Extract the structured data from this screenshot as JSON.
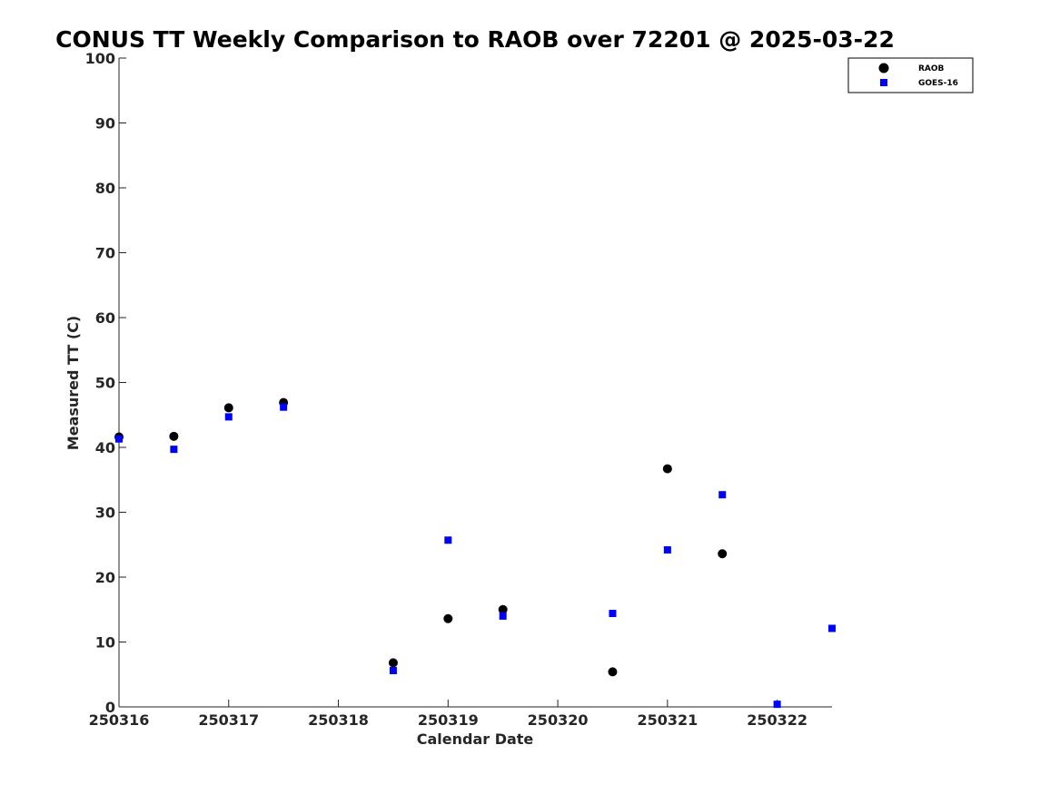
{
  "chart_data": {
    "type": "scatter",
    "title": "CONUS TT Weekly Comparison to RAOB over 72201 @ 2025-03-22",
    "xlabel": "Calendar Date",
    "ylabel": "Measured TT (C)",
    "xlim": [
      250316,
      250322.5
    ],
    "ylim": [
      0,
      100
    ],
    "xticks": [
      250316,
      250317,
      250318,
      250319,
      250320,
      250321,
      250322
    ],
    "xtick_labels": [
      "250316",
      "250317",
      "250318",
      "250319",
      "250320",
      "250321",
      "250322"
    ],
    "yticks": [
      0,
      10,
      20,
      30,
      40,
      50,
      60,
      70,
      80,
      90,
      100
    ],
    "ytick_labels": [
      "0",
      "10",
      "20",
      "30",
      "40",
      "50",
      "60",
      "70",
      "80",
      "90",
      "100"
    ],
    "grid": false,
    "legend_position": "top-right",
    "series": [
      {
        "name": "RAOB",
        "marker": "circle",
        "color": "#000000",
        "points": [
          {
            "x": 250316.0,
            "y": 41.6
          },
          {
            "x": 250316.5,
            "y": 41.7
          },
          {
            "x": 250317.0,
            "y": 46.1
          },
          {
            "x": 250317.5,
            "y": 46.9
          },
          {
            "x": 250318.5,
            "y": 6.8
          },
          {
            "x": 250319.0,
            "y": 13.6
          },
          {
            "x": 250319.5,
            "y": 15.0
          },
          {
            "x": 250320.5,
            "y": 5.4
          },
          {
            "x": 250321.0,
            "y": 36.7
          },
          {
            "x": 250321.5,
            "y": 23.6
          }
        ]
      },
      {
        "name": "GOES-16",
        "marker": "square",
        "color": "#0000ff",
        "points": [
          {
            "x": 250316.0,
            "y": 41.3
          },
          {
            "x": 250316.5,
            "y": 39.7
          },
          {
            "x": 250317.0,
            "y": 44.7
          },
          {
            "x": 250317.5,
            "y": 46.2
          },
          {
            "x": 250318.5,
            "y": 5.6
          },
          {
            "x": 250319.0,
            "y": 25.7
          },
          {
            "x": 250319.5,
            "y": 14.0
          },
          {
            "x": 250320.5,
            "y": 14.4
          },
          {
            "x": 250321.0,
            "y": 24.2
          },
          {
            "x": 250321.5,
            "y": 32.7
          },
          {
            "x": 250322.0,
            "y": 0.4
          },
          {
            "x": 250322.5,
            "y": 12.1
          }
        ]
      }
    ]
  }
}
